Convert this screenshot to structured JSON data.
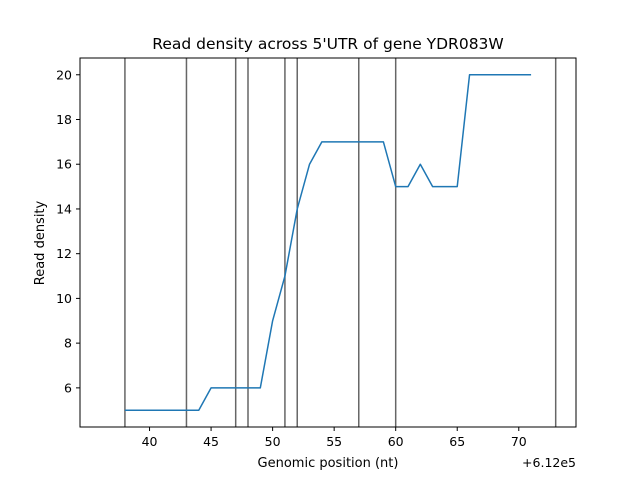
{
  "chart_data": {
    "type": "line",
    "title": "Read density across 5'UTR of gene YDR083W",
    "xlabel": "Genomic position (nt)",
    "ylabel": "Read density",
    "x_offset_label": "+6.12e5",
    "xlim": [
      34.35,
      74.65
    ],
    "ylim": [
      4.25,
      20.75
    ],
    "x_ticks": [
      40,
      45,
      50,
      55,
      60,
      65,
      70
    ],
    "y_ticks": [
      6,
      8,
      10,
      12,
      14,
      16,
      18,
      20
    ],
    "grid": false,
    "series": [
      {
        "color": "#1f77b4",
        "x": [
          38,
          39,
          40,
          41,
          42,
          43,
          44,
          45,
          46,
          47,
          48,
          49,
          50,
          51,
          52,
          53,
          54,
          55,
          56,
          57,
          58,
          59,
          60,
          61,
          62,
          63,
          64,
          65,
          66,
          67,
          68,
          69,
          70,
          71
        ],
        "y": [
          5,
          5,
          5,
          5,
          5,
          5,
          5,
          6,
          6,
          6,
          6,
          6,
          9,
          11,
          14,
          16,
          17,
          17,
          17,
          17,
          17,
          17,
          15,
          15,
          16,
          15,
          15,
          15,
          20,
          20,
          20,
          20,
          20,
          20
        ]
      }
    ],
    "vertical_lines": {
      "color": "#666666",
      "x": [
        38,
        43,
        47,
        48,
        51,
        52,
        57,
        60,
        73
      ]
    }
  }
}
